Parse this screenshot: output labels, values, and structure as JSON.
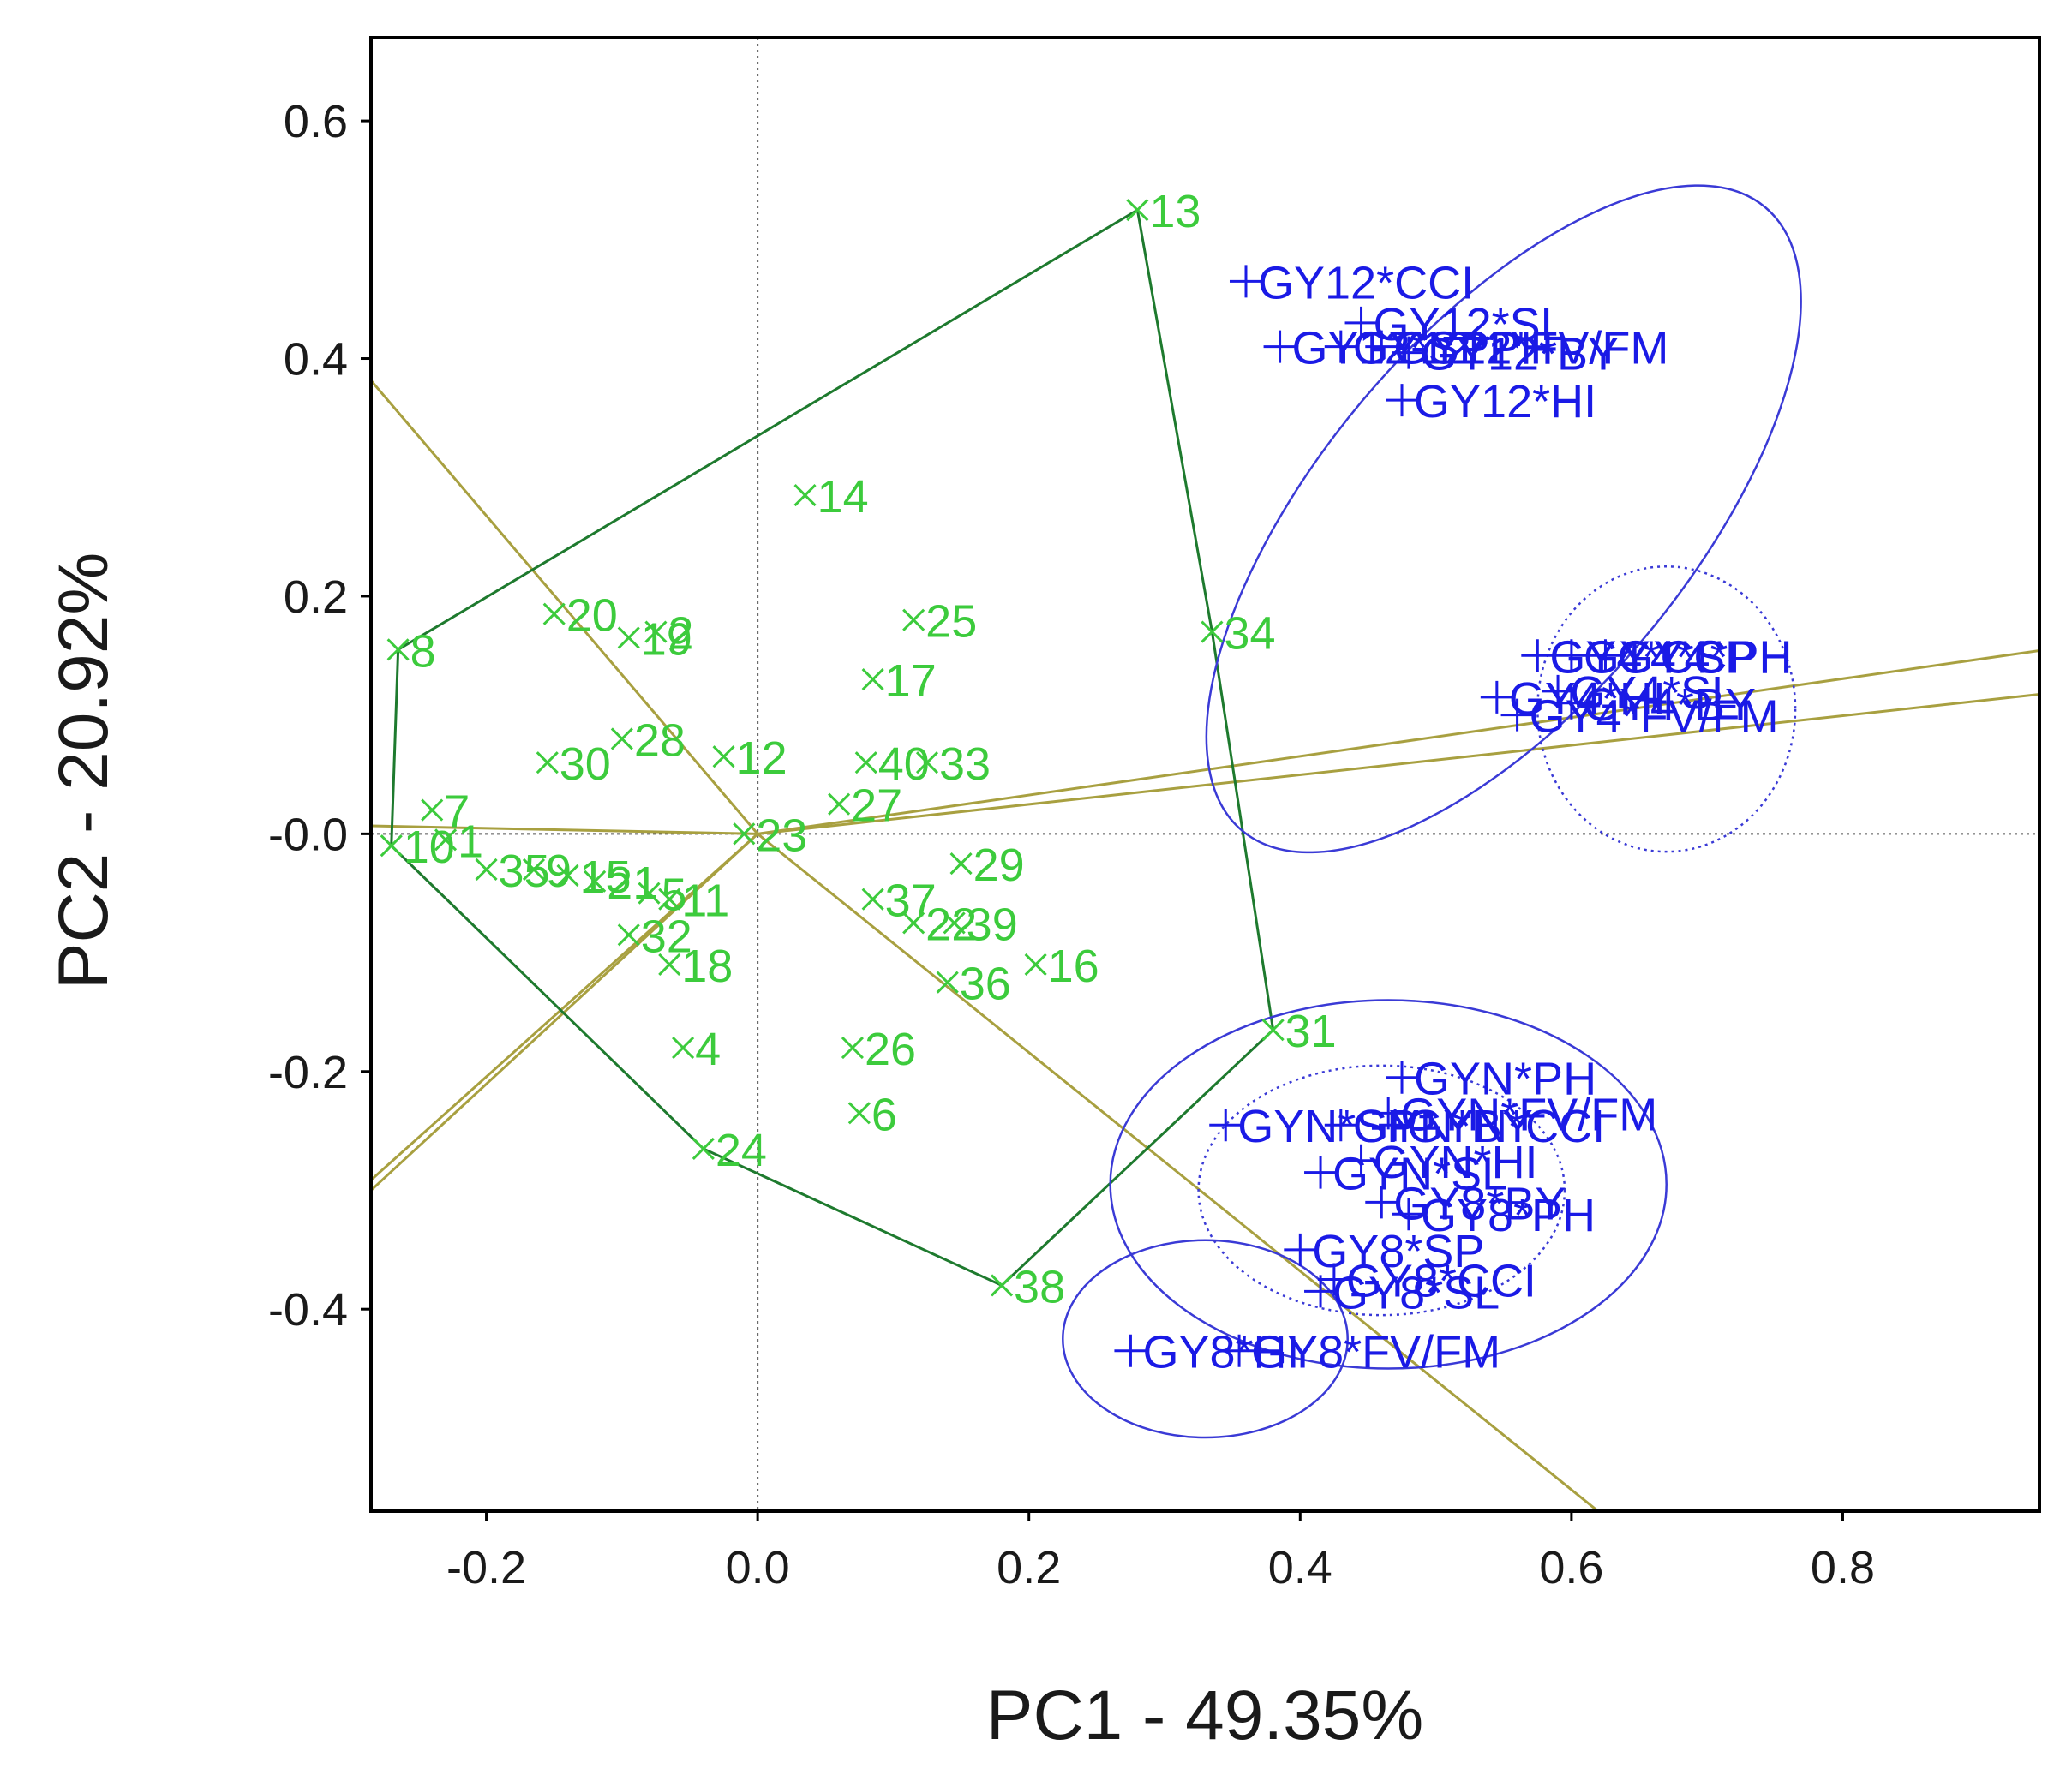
{
  "chart_data": {
    "type": "scatter",
    "title": "",
    "xlabel": "PC1 - 49.35%",
    "ylabel": "PC2 - 20.92%",
    "xlim": [
      -0.285,
      0.945
    ],
    "ylim": [
      -0.57,
      0.67
    ],
    "x_ticks": [
      {
        "value": -0.2,
        "label": "-0.2"
      },
      {
        "value": 0.0,
        "label": "0.0"
      },
      {
        "value": 0.2,
        "label": "0.2"
      },
      {
        "value": 0.4,
        "label": "0.4"
      },
      {
        "value": 0.6,
        "label": "0.6"
      },
      {
        "value": 0.8,
        "label": "0.8"
      }
    ],
    "y_ticks": [
      {
        "value": 0.6,
        "label": "0.6"
      },
      {
        "value": 0.4,
        "label": "0.4"
      },
      {
        "value": 0.2,
        "label": "0.2"
      },
      {
        "value": 0.0,
        "label": "-0.0"
      },
      {
        "value": -0.2,
        "label": "-0.2"
      },
      {
        "value": -0.4,
        "label": "-0.4"
      }
    ],
    "colors": {
      "genotype": "#3ccb3c",
      "environment": "#1a1ae6",
      "hull": "#1e7a2e",
      "rays": "#a8a040",
      "ellipse": "#3a3ad6",
      "frame": "#000000",
      "reference": "#555555"
    },
    "genotypes": [
      {
        "label": "13",
        "x": 0.28,
        "y": 0.525
      },
      {
        "label": "14",
        "x": 0.035,
        "y": 0.285
      },
      {
        "label": "20",
        "x": -0.15,
        "y": 0.185
      },
      {
        "label": "19",
        "x": -0.095,
        "y": 0.165
      },
      {
        "label": "2",
        "x": -0.075,
        "y": 0.17
      },
      {
        "label": "8",
        "x": -0.265,
        "y": 0.155
      },
      {
        "label": "25",
        "x": 0.115,
        "y": 0.18
      },
      {
        "label": "17",
        "x": 0.085,
        "y": 0.13
      },
      {
        "label": "34",
        "x": 0.335,
        "y": 0.17
      },
      {
        "label": "28",
        "x": -0.1,
        "y": 0.08
      },
      {
        "label": "30",
        "x": -0.155,
        "y": 0.06
      },
      {
        "label": "12",
        "x": -0.025,
        "y": 0.065
      },
      {
        "label": "40",
        "x": 0.08,
        "y": 0.06
      },
      {
        "label": "33",
        "x": 0.125,
        "y": 0.06
      },
      {
        "label": "27",
        "x": 0.06,
        "y": 0.025
      },
      {
        "label": "7",
        "x": -0.24,
        "y": 0.02
      },
      {
        "label": "23",
        "x": -0.01,
        "y": 0.0
      },
      {
        "label": "10",
        "x": -0.27,
        "y": -0.01
      },
      {
        "label": "1",
        "x": -0.23,
        "y": -0.005
      },
      {
        "label": "35",
        "x": -0.2,
        "y": -0.03
      },
      {
        "label": "9",
        "x": -0.165,
        "y": -0.03
      },
      {
        "label": "15",
        "x": -0.14,
        "y": -0.035
      },
      {
        "label": "21",
        "x": -0.12,
        "y": -0.04
      },
      {
        "label": "5",
        "x": -0.08,
        "y": -0.05
      },
      {
        "label": "11",
        "x": -0.065,
        "y": -0.055
      },
      {
        "label": "32",
        "x": -0.095,
        "y": -0.085
      },
      {
        "label": "29",
        "x": 0.15,
        "y": -0.025
      },
      {
        "label": "37",
        "x": 0.085,
        "y": -0.055
      },
      {
        "label": "22",
        "x": 0.115,
        "y": -0.075
      },
      {
        "label": "39",
        "x": 0.145,
        "y": -0.075
      },
      {
        "label": "16",
        "x": 0.205,
        "y": -0.11
      },
      {
        "label": "36",
        "x": 0.14,
        "y": -0.125
      },
      {
        "label": "18",
        "x": -0.065,
        "y": -0.11
      },
      {
        "label": "4",
        "x": -0.055,
        "y": -0.18
      },
      {
        "label": "26",
        "x": 0.07,
        "y": -0.18
      },
      {
        "label": "6",
        "x": 0.075,
        "y": -0.235
      },
      {
        "label": "24",
        "x": -0.04,
        "y": -0.265
      },
      {
        "label": "31",
        "x": 0.38,
        "y": -0.165
      },
      {
        "label": "38",
        "x": 0.18,
        "y": -0.38
      }
    ],
    "environments": [
      {
        "label": "GY12*CCI",
        "x": 0.36,
        "y": 0.465
      },
      {
        "label": "GY12*SL",
        "x": 0.445,
        "y": 0.43
      },
      {
        "label": "GY12*SP",
        "x": 0.385,
        "y": 0.41
      },
      {
        "label": "GY12*PH",
        "x": 0.43,
        "y": 0.41
      },
      {
        "label": "GY12*FV/FM",
        "x": 0.46,
        "y": 0.41
      },
      {
        "label": "GY12*BY",
        "x": 0.48,
        "y": 0.405
      },
      {
        "label": "GY12*HI",
        "x": 0.475,
        "y": 0.365
      },
      {
        "label": "GY4*CCI",
        "x": 0.575,
        "y": 0.15
      },
      {
        "label": "GY4*SP",
        "x": 0.6,
        "y": 0.15
      },
      {
        "label": "GY4*PH",
        "x": 0.625,
        "y": 0.15
      },
      {
        "label": "GY4*SL",
        "x": 0.59,
        "y": 0.12
      },
      {
        "label": "GY4*HI",
        "x": 0.545,
        "y": 0.115
      },
      {
        "label": "GY4*BY",
        "x": 0.6,
        "y": 0.11
      },
      {
        "label": "GY4*FV/FM",
        "x": 0.56,
        "y": 0.1
      },
      {
        "label": "GYN*PH",
        "x": 0.475,
        "y": -0.205
      },
      {
        "label": "GYN*FV/FM",
        "x": 0.465,
        "y": -0.235
      },
      {
        "label": "GYN*SP",
        "x": 0.345,
        "y": -0.245
      },
      {
        "label": "GYN*BY",
        "x": 0.43,
        "y": -0.245
      },
      {
        "label": "GYN*CCI",
        "x": 0.47,
        "y": -0.245
      },
      {
        "label": "GYN*HI",
        "x": 0.445,
        "y": -0.275
      },
      {
        "label": "GYN*SL",
        "x": 0.415,
        "y": -0.285
      },
      {
        "label": "GY8*BY",
        "x": 0.46,
        "y": -0.31
      },
      {
        "label": "GY8*PH",
        "x": 0.48,
        "y": -0.32
      },
      {
        "label": "GY8*SP",
        "x": 0.4,
        "y": -0.35
      },
      {
        "label": "GY8*CCI",
        "x": 0.425,
        "y": -0.375
      },
      {
        "label": "GY8*SL",
        "x": 0.415,
        "y": -0.385
      },
      {
        "label": "GY8*HI",
        "x": 0.275,
        "y": -0.435
      },
      {
        "label": "GY8*FV/FM",
        "x": 0.355,
        "y": -0.435
      }
    ],
    "hull_vertices": [
      "13",
      "34",
      "31",
      "38",
      "24",
      "10",
      "8"
    ],
    "sector_rays": [
      {
        "x": -0.62,
        "y": 0.83
      },
      {
        "x": 0.95,
        "y": 0.155
      },
      {
        "x": 0.95,
        "y": 0.118
      },
      {
        "x": 0.75,
        "y": -0.69
      },
      {
        "x": -0.57,
        "y": -0.6
      },
      {
        "x": -0.45,
        "y": -0.46
      },
      {
        "x": -0.85,
        "y": 0.02
      }
    ],
    "ellipses": [
      {
        "cx": 0.55,
        "cy": 0.265,
        "rx": 0.3,
        "ry": 0.155,
        "rotation": -50,
        "style": "solid"
      },
      {
        "cx": 0.465,
        "cy": -0.295,
        "rx": 0.205,
        "ry": 0.155,
        "rotation": 0,
        "style": "solid"
      },
      {
        "cx": 0.33,
        "cy": -0.425,
        "rx": 0.105,
        "ry": 0.083,
        "rotation": 0,
        "style": "solid"
      },
      {
        "cx": 0.67,
        "cy": 0.105,
        "rx": 0.095,
        "ry": 0.12,
        "rotation": 0,
        "style": "dotted"
      },
      {
        "cx": 0.46,
        "cy": -0.3,
        "rx": 0.135,
        "ry": 0.105,
        "rotation": 0,
        "style": "dotted"
      }
    ]
  }
}
